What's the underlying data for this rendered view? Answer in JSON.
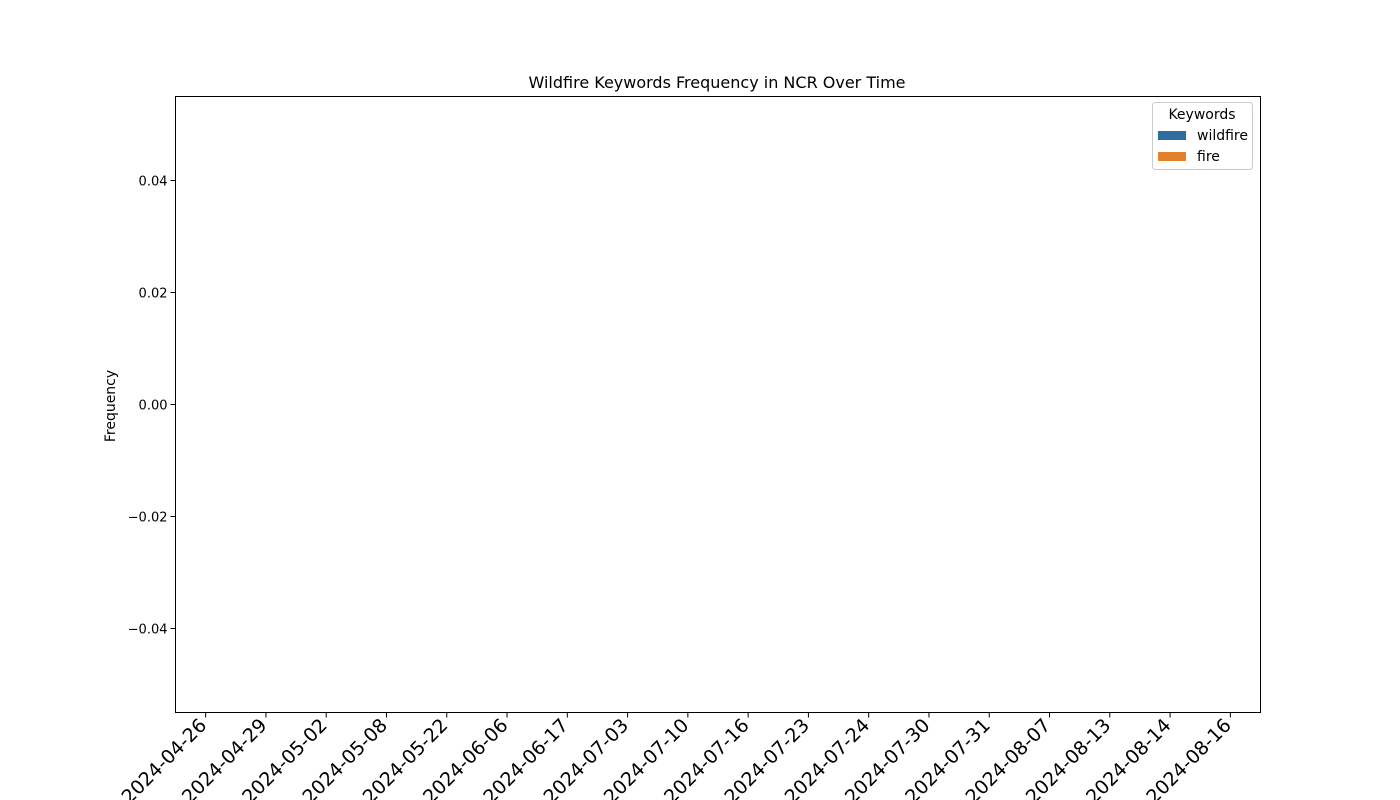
{
  "chart_data": {
    "type": "bar",
    "title": "Wildfire Keywords Frequency in NCR Over Time",
    "xlabel": "",
    "ylabel": "Frequency",
    "categories": [
      "2024-04-26",
      "2024-04-29",
      "2024-05-02",
      "2024-05-08",
      "2024-05-22",
      "2024-06-06",
      "2024-06-17",
      "2024-07-03",
      "2024-07-10",
      "2024-07-16",
      "2024-07-23",
      "2024-07-24",
      "2024-07-30",
      "2024-07-31",
      "2024-08-07",
      "2024-08-13",
      "2024-08-14",
      "2024-08-16"
    ],
    "series": [
      {
        "name": "wildfire",
        "color": "#2e6e9e",
        "values": [
          0,
          0,
          0,
          0,
          0,
          0,
          0,
          0,
          0,
          0,
          0,
          0,
          0,
          0,
          0,
          0,
          0,
          0
        ]
      },
      {
        "name": "fire",
        "color": "#e1812c",
        "values": [
          0,
          0,
          0,
          0,
          0,
          0,
          0,
          0,
          0,
          0,
          0,
          0,
          0,
          0,
          0,
          0,
          0,
          0
        ]
      }
    ],
    "ylim": [
      -0.055,
      0.055
    ],
    "yticks": [
      -0.04,
      -0.02,
      0.0,
      0.02,
      0.04
    ],
    "ytick_labels": [
      "−0.04",
      "−0.02",
      "0.00",
      "0.02",
      "0.04"
    ],
    "legend": {
      "title": "Keywords",
      "placement": "top-right"
    },
    "grid": false
  }
}
